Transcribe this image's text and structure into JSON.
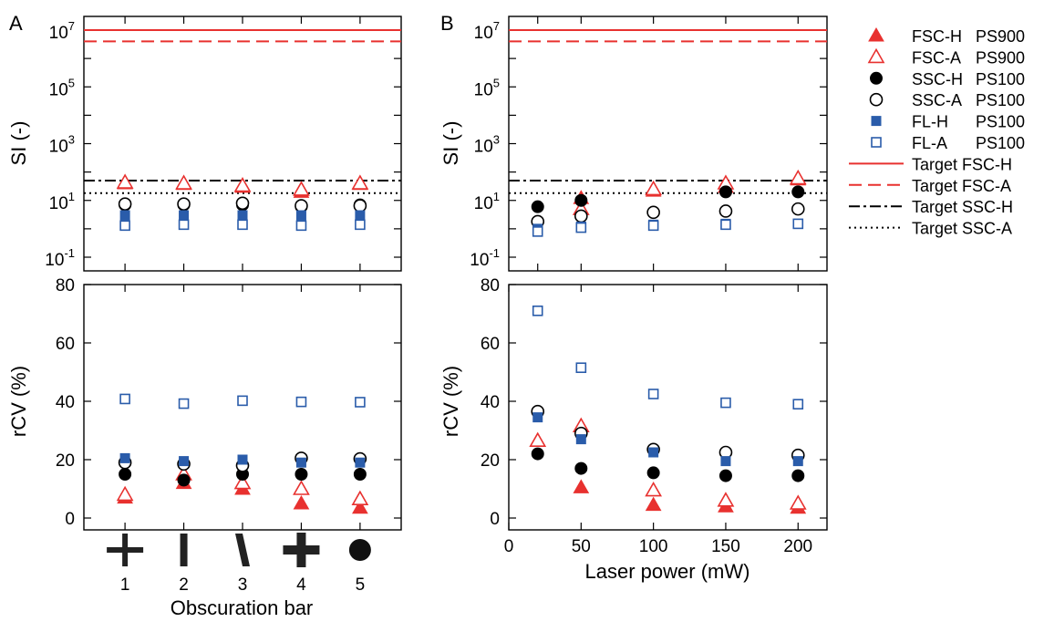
{
  "panels": {
    "left_letter": "A",
    "right_letter": "B"
  },
  "legend": {
    "items": [
      {
        "label": "FSC-H",
        "sample": "PS900",
        "kind": "marker",
        "marker": "triangle-filled",
        "color": "#e8312f"
      },
      {
        "label": "FSC-A",
        "sample": "PS900",
        "kind": "marker",
        "marker": "triangle-open",
        "color": "#e8312f"
      },
      {
        "label": "SSC-H",
        "sample": "PS100",
        "kind": "marker",
        "marker": "circle-filled",
        "color": "#000000"
      },
      {
        "label": "SSC-A",
        "sample": "PS100",
        "kind": "marker",
        "marker": "circle-open",
        "color": "#000000"
      },
      {
        "label": "FL-H",
        "sample": "PS100",
        "kind": "marker",
        "marker": "square-filled",
        "color": "#2a5caa"
      },
      {
        "label": "FL-A",
        "sample": "PS100",
        "kind": "marker",
        "marker": "square-open",
        "color": "#2a5caa"
      },
      {
        "label": "Target FSC-H",
        "sample": "",
        "kind": "line",
        "dash": "solid",
        "color": "#e8312f"
      },
      {
        "label": "Target FSC-A",
        "sample": "",
        "kind": "line",
        "dash": "dashed",
        "color": "#e8312f"
      },
      {
        "label": "Target SSC-H",
        "sample": "",
        "kind": "line",
        "dash": "dashdot",
        "color": "#000000"
      },
      {
        "label": "Target SSC-A",
        "sample": "",
        "kind": "line",
        "dash": "dotted",
        "color": "#000000"
      }
    ]
  },
  "chart_data": [
    {
      "id": "A-top",
      "type": "scatter",
      "xlabel": "",
      "ylabel": "SI (-)",
      "yscale": "log",
      "ylim": [
        0.1,
        10000000.0
      ],
      "xlim": [
        0.3,
        5.7
      ],
      "x": [
        1,
        2,
        3,
        4,
        5
      ],
      "yticks": [
        {
          "base": "10",
          "exp": "-1",
          "value": 0.1
        },
        {
          "base": "10",
          "exp": "1",
          "value": 10
        },
        {
          "base": "10",
          "exp": "3",
          "value": 1000
        },
        {
          "base": "10",
          "exp": "5",
          "value": 100000
        },
        {
          "base": "10",
          "exp": "7",
          "value": 10000000
        }
      ],
      "hlines": [
        {
          "name": "Target FSC-H",
          "value": 10000000
        },
        {
          "name": "Target FSC-A",
          "value": 4000000
        },
        {
          "name": "Target SSC-H",
          "value": 50
        },
        {
          "name": "Target SSC-A",
          "value": 18
        }
      ],
      "series": [
        {
          "name": "FSC-H PS900",
          "values": [
            40,
            38,
            30,
            20,
            38
          ]
        },
        {
          "name": "FSC-A PS900",
          "values": [
            43,
            40,
            33,
            24,
            40
          ]
        },
        {
          "name": "SSC-H PS100",
          "values": [
            7,
            7,
            7,
            6,
            7
          ]
        },
        {
          "name": "SSC-A PS100",
          "values": [
            7.5,
            7.5,
            8,
            6.5,
            6.5
          ]
        },
        {
          "name": "FL-H PS100",
          "values": [
            3,
            3,
            3,
            3,
            3
          ]
        },
        {
          "name": "FL-A PS100",
          "values": [
            1.3,
            1.4,
            1.4,
            1.3,
            1.4
          ]
        }
      ]
    },
    {
      "id": "A-bottom",
      "type": "scatter",
      "xlabel": "Obscuration bar",
      "ylabel": "rCV (%)",
      "ylim": [
        0,
        80
      ],
      "xlim": [
        0.3,
        5.7
      ],
      "x": [
        1,
        2,
        3,
        4,
        5
      ],
      "xticks": [
        "1",
        "2",
        "3",
        "4",
        "5"
      ],
      "yticks": [
        "0",
        "20",
        "40",
        "60",
        "80"
      ],
      "series": [
        {
          "name": "FSC-H PS900",
          "values": [
            7,
            12,
            10,
            5,
            3.5
          ]
        },
        {
          "name": "FSC-A PS900",
          "values": [
            8,
            15,
            12,
            10,
            6.5
          ]
        },
        {
          "name": "SSC-H PS100",
          "values": [
            15,
            13,
            15,
            15,
            15
          ]
        },
        {
          "name": "SSC-A PS100",
          "values": [
            19,
            18.5,
            18,
            20.5,
            20.3
          ]
        },
        {
          "name": "FL-H PS100",
          "values": [
            20.5,
            19.5,
            20,
            19,
            19
          ]
        },
        {
          "name": "FL-A PS100",
          "values": [
            40.8,
            39.2,
            40.2,
            39.8,
            39.7
          ]
        }
      ]
    },
    {
      "id": "B-top",
      "type": "scatter",
      "xlabel": "",
      "ylabel": "SI (-)",
      "yscale": "log",
      "ylim": [
        0.1,
        10000000.0
      ],
      "xlim": [
        0,
        220
      ],
      "x": [
        20,
        50,
        100,
        150,
        200
      ],
      "yticks": [
        {
          "base": "10",
          "exp": "-1",
          "value": 0.1
        },
        {
          "base": "10",
          "exp": "1",
          "value": 10
        },
        {
          "base": "10",
          "exp": "3",
          "value": 1000
        },
        {
          "base": "10",
          "exp": "5",
          "value": 100000
        },
        {
          "base": "10",
          "exp": "7",
          "value": 10000000
        }
      ],
      "hlines": [
        {
          "name": "Target FSC-H",
          "value": 10000000
        },
        {
          "name": "Target FSC-A",
          "value": 4000000
        },
        {
          "name": "Target SSC-H",
          "value": 50
        },
        {
          "name": "Target SSC-A",
          "value": 18
        }
      ],
      "series": [
        {
          "name": "FSC-H PS900",
          "values": [
            null,
            12,
            22,
            30,
            55
          ]
        },
        {
          "name": "FSC-A PS900",
          "values": [
            null,
            5,
            25,
            40,
            60
          ]
        },
        {
          "name": "SSC-H PS100",
          "values": [
            6,
            10,
            null,
            20,
            20
          ]
        },
        {
          "name": "SSC-A PS100",
          "values": [
            1.8,
            2.8,
            3.8,
            4.2,
            5
          ]
        },
        {
          "name": "FL-H PS100",
          "values": [
            1,
            1.2,
            1.4,
            1.5,
            1.5
          ]
        },
        {
          "name": "FL-A PS100",
          "values": [
            0.8,
            1.1,
            1.3,
            1.4,
            1.5
          ]
        }
      ]
    },
    {
      "id": "B-bottom",
      "type": "scatter",
      "xlabel": "Laser power (mW)",
      "ylabel": "rCV (%)",
      "ylim": [
        0,
        80
      ],
      "xlim": [
        0,
        220
      ],
      "x": [
        20,
        50,
        100,
        150,
        200
      ],
      "xticks": [
        "0",
        "50",
        "100",
        "150",
        "200"
      ],
      "xtick_values": [
        0,
        50,
        100,
        150,
        200
      ],
      "yticks": [
        "0",
        "20",
        "40",
        "60",
        "80"
      ],
      "series": [
        {
          "name": "FSC-H PS900",
          "values": [
            26.5,
            10.5,
            4.5,
            4,
            3.5
          ]
        },
        {
          "name": "FSC-A PS900",
          "values": [
            26.5,
            31.5,
            9.5,
            6,
            5
          ]
        },
        {
          "name": "SSC-H PS100",
          "values": [
            22,
            17,
            15.5,
            14.5,
            14.5
          ]
        },
        {
          "name": "SSC-A PS100",
          "values": [
            36.5,
            29,
            23.5,
            22.5,
            21.5
          ]
        },
        {
          "name": "FL-H PS100",
          "values": [
            34.5,
            27,
            22.5,
            19.5,
            19.5
          ]
        },
        {
          "name": "FL-A PS100",
          "values": [
            71,
            51.5,
            42.5,
            39.5,
            39
          ]
        }
      ]
    }
  ]
}
